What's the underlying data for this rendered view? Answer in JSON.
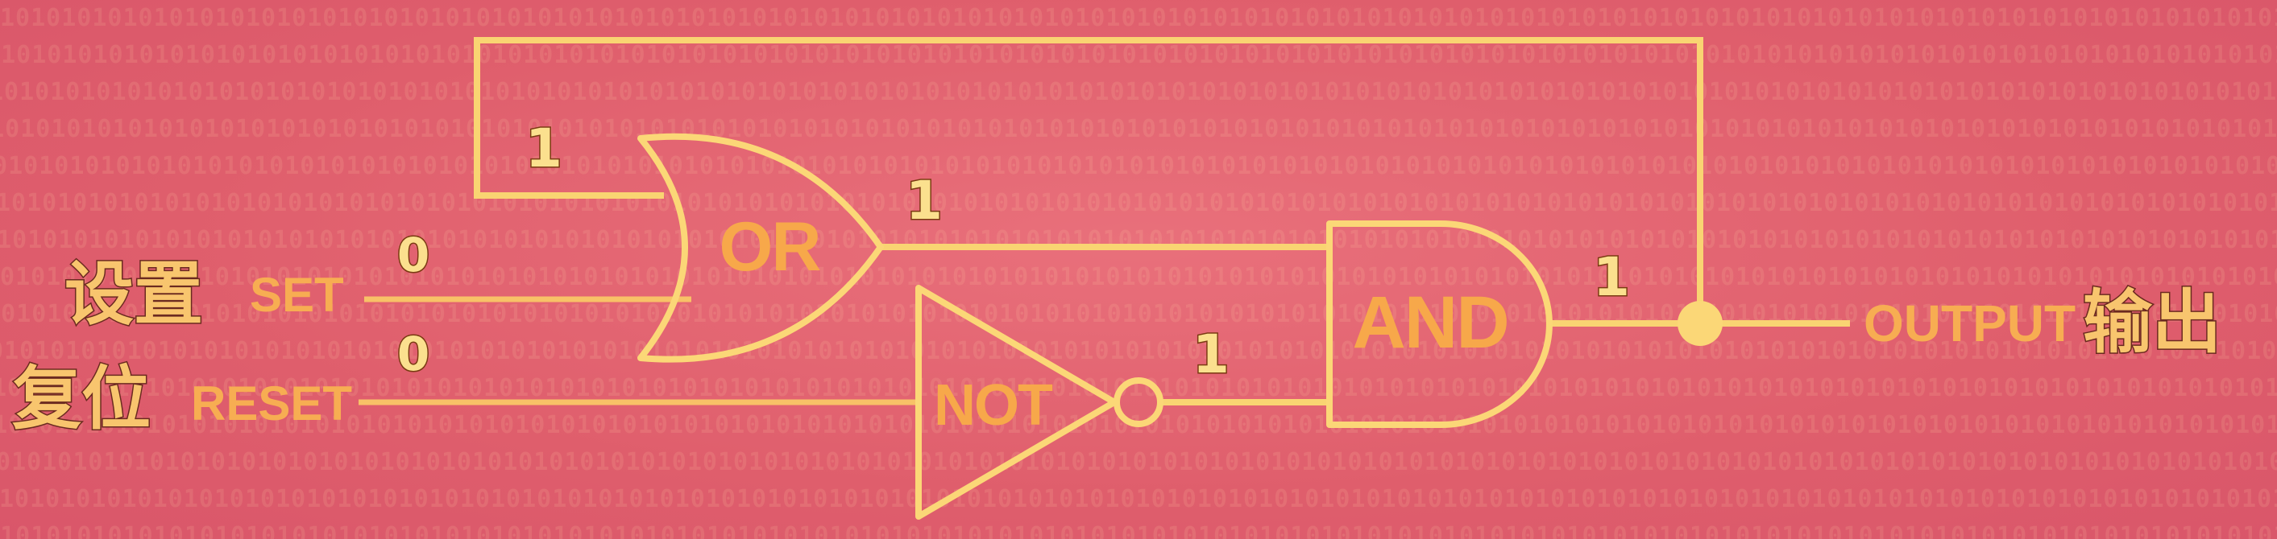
{
  "background_pattern": "10",
  "colors": {
    "background": "#e0626f",
    "wire": "#f9d472",
    "gate_label": "#f7a84a",
    "signal_value": "#fbe08e"
  },
  "inputs": {
    "set": {
      "label_cn": "设置",
      "label_en": "SET",
      "value": "0"
    },
    "reset": {
      "label_cn": "复位",
      "label_en": "RESET",
      "value": "0"
    }
  },
  "gates": {
    "or": {
      "label": "OR",
      "feedback_in": "1",
      "out": "1"
    },
    "not": {
      "label": "NOT",
      "out": "1"
    },
    "and": {
      "label": "AND",
      "out": "1"
    }
  },
  "output": {
    "label_en": "OUTPUT",
    "label_cn": "输出"
  }
}
